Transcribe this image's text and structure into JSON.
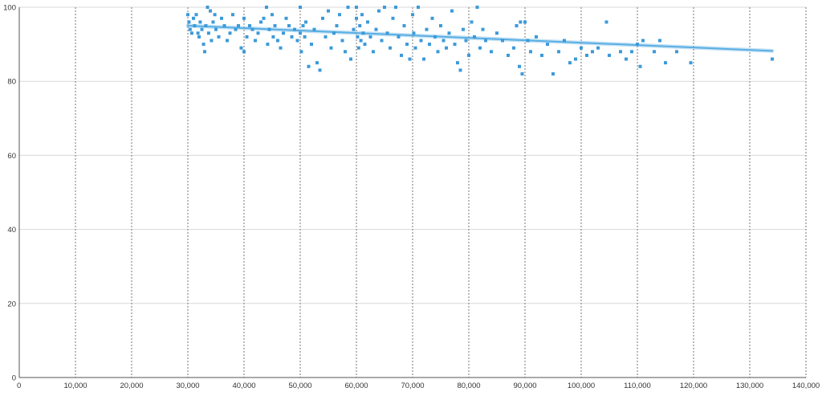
{
  "chart_data": {
    "type": "scatter",
    "title": "",
    "xlabel": "",
    "ylabel": "",
    "xlim": [
      0,
      140000
    ],
    "ylim": [
      0,
      100
    ],
    "x_ticks": [
      0,
      10000,
      20000,
      30000,
      40000,
      50000,
      60000,
      70000,
      80000,
      90000,
      100000,
      110000,
      120000,
      130000,
      140000
    ],
    "x_tick_labels": [
      "0",
      "10,000",
      "20,000",
      "30,000",
      "40,000",
      "50,000",
      "60,000",
      "70,000",
      "80,000",
      "90,000",
      "100,000",
      "110,000",
      "120,000",
      "130,000",
      "140,000"
    ],
    "y_ticks": [
      0,
      20,
      40,
      60,
      80,
      100
    ],
    "y_tick_labels": [
      "0",
      "20",
      "40",
      "60",
      "80",
      "100"
    ],
    "grid": {
      "horizontal": "solid",
      "vertical": "dotted"
    },
    "legend": "none",
    "point_color": "#3b9ad9",
    "trendline": {
      "x": [
        30000,
        134000
      ],
      "y": [
        95,
        88.2
      ],
      "color": "#5aaee3"
    },
    "series": [
      {
        "points": [
          [
            30000,
            98
          ],
          [
            30200,
            96
          ],
          [
            30400,
            94
          ],
          [
            30700,
            93
          ],
          [
            31000,
            97
          ],
          [
            31200,
            95
          ],
          [
            31500,
            98
          ],
          [
            31800,
            93
          ],
          [
            32000,
            92
          ],
          [
            32200,
            96
          ],
          [
            32500,
            94
          ],
          [
            32800,
            90
          ],
          [
            33000,
            88
          ],
          [
            33200,
            95
          ],
          [
            33500,
            100
          ],
          [
            33700,
            93
          ],
          [
            34000,
            99
          ],
          [
            34200,
            91
          ],
          [
            34500,
            96
          ],
          [
            34800,
            98
          ],
          [
            35000,
            94
          ],
          [
            35500,
            92
          ],
          [
            36000,
            97
          ],
          [
            36500,
            95
          ],
          [
            37000,
            91
          ],
          [
            37500,
            93
          ],
          [
            38000,
            98
          ],
          [
            38500,
            94
          ],
          [
            39000,
            95
          ],
          [
            39500,
            89
          ],
          [
            40000,
            88
          ],
          [
            40000,
            97
          ],
          [
            40500,
            92
          ],
          [
            41000,
            95
          ],
          [
            41500,
            94
          ],
          [
            42000,
            91
          ],
          [
            42500,
            93
          ],
          [
            43000,
            96
          ],
          [
            43500,
            97
          ],
          [
            44000,
            100
          ],
          [
            44200,
            90
          ],
          [
            44500,
            94
          ],
          [
            45000,
            98
          ],
          [
            45200,
            92
          ],
          [
            45500,
            95
          ],
          [
            46000,
            91
          ],
          [
            46500,
            89
          ],
          [
            47000,
            93
          ],
          [
            47500,
            97
          ],
          [
            48000,
            95
          ],
          [
            48500,
            92
          ],
          [
            49000,
            94
          ],
          [
            49500,
            91
          ],
          [
            50000,
            100
          ],
          [
            50000,
            93
          ],
          [
            50200,
            88
          ],
          [
            50500,
            95
          ],
          [
            50800,
            92
          ],
          [
            51000,
            96
          ],
          [
            51500,
            84
          ],
          [
            52000,
            90
          ],
          [
            52500,
            94
          ],
          [
            53000,
            85
          ],
          [
            53500,
            83
          ],
          [
            54000,
            97
          ],
          [
            54500,
            92
          ],
          [
            55000,
            99
          ],
          [
            55500,
            89
          ],
          [
            56000,
            93
          ],
          [
            56500,
            95
          ],
          [
            57000,
            98
          ],
          [
            57500,
            91
          ],
          [
            58000,
            88
          ],
          [
            58500,
            100
          ],
          [
            59000,
            86
          ],
          [
            59500,
            94
          ],
          [
            60000,
            100
          ],
          [
            60000,
            97
          ],
          [
            60200,
            92
          ],
          [
            60400,
            89
          ],
          [
            60600,
            95
          ],
          [
            60800,
            91
          ],
          [
            61000,
            98
          ],
          [
            61200,
            93
          ],
          [
            61500,
            90
          ],
          [
            62000,
            96
          ],
          [
            62500,
            92
          ],
          [
            63000,
            88
          ],
          [
            63500,
            94
          ],
          [
            64000,
            99
          ],
          [
            64500,
            91
          ],
          [
            65000,
            100
          ],
          [
            65500,
            93
          ],
          [
            66000,
            89
          ],
          [
            66500,
            97
          ],
          [
            67000,
            100
          ],
          [
            67500,
            92
          ],
          [
            68000,
            87
          ],
          [
            68500,
            95
          ],
          [
            69000,
            90
          ],
          [
            69500,
            86
          ],
          [
            70000,
            98
          ],
          [
            70200,
            93
          ],
          [
            70500,
            89
          ],
          [
            71000,
            100
          ],
          [
            71500,
            91
          ],
          [
            72000,
            86
          ],
          [
            72500,
            94
          ],
          [
            73000,
            90
          ],
          [
            73500,
            97
          ],
          [
            74000,
            92
          ],
          [
            74500,
            88
          ],
          [
            75000,
            95
          ],
          [
            75500,
            91
          ],
          [
            76000,
            89
          ],
          [
            76500,
            93
          ],
          [
            77000,
            99
          ],
          [
            77500,
            90
          ],
          [
            78000,
            85
          ],
          [
            78500,
            83
          ],
          [
            79000,
            94
          ],
          [
            79500,
            91
          ],
          [
            80000,
            87
          ],
          [
            80500,
            96
          ],
          [
            81000,
            92
          ],
          [
            81500,
            100
          ],
          [
            82000,
            89
          ],
          [
            82500,
            94
          ],
          [
            83000,
            91
          ],
          [
            84000,
            88
          ],
          [
            85000,
            93
          ],
          [
            86000,
            91
          ],
          [
            87000,
            87
          ],
          [
            88000,
            89
          ],
          [
            88500,
            95
          ],
          [
            89000,
            84
          ],
          [
            89200,
            96
          ],
          [
            89500,
            82
          ],
          [
            90000,
            96
          ],
          [
            90500,
            91
          ],
          [
            91000,
            88
          ],
          [
            92000,
            92
          ],
          [
            93000,
            87
          ],
          [
            94000,
            90
          ],
          [
            95000,
            82
          ],
          [
            96000,
            88
          ],
          [
            97000,
            91
          ],
          [
            98000,
            85
          ],
          [
            99000,
            86
          ],
          [
            100000,
            89
          ],
          [
            101000,
            87
          ],
          [
            102000,
            88
          ],
          [
            103000,
            89
          ],
          [
            104500,
            96
          ],
          [
            105000,
            87
          ],
          [
            107000,
            88
          ],
          [
            108000,
            86
          ],
          [
            109000,
            88
          ],
          [
            110000,
            90
          ],
          [
            110500,
            84
          ],
          [
            111000,
            91
          ],
          [
            113000,
            88
          ],
          [
            114000,
            91
          ],
          [
            115000,
            85
          ],
          [
            117000,
            88
          ],
          [
            119500,
            85
          ],
          [
            134000,
            86
          ]
        ]
      }
    ]
  }
}
